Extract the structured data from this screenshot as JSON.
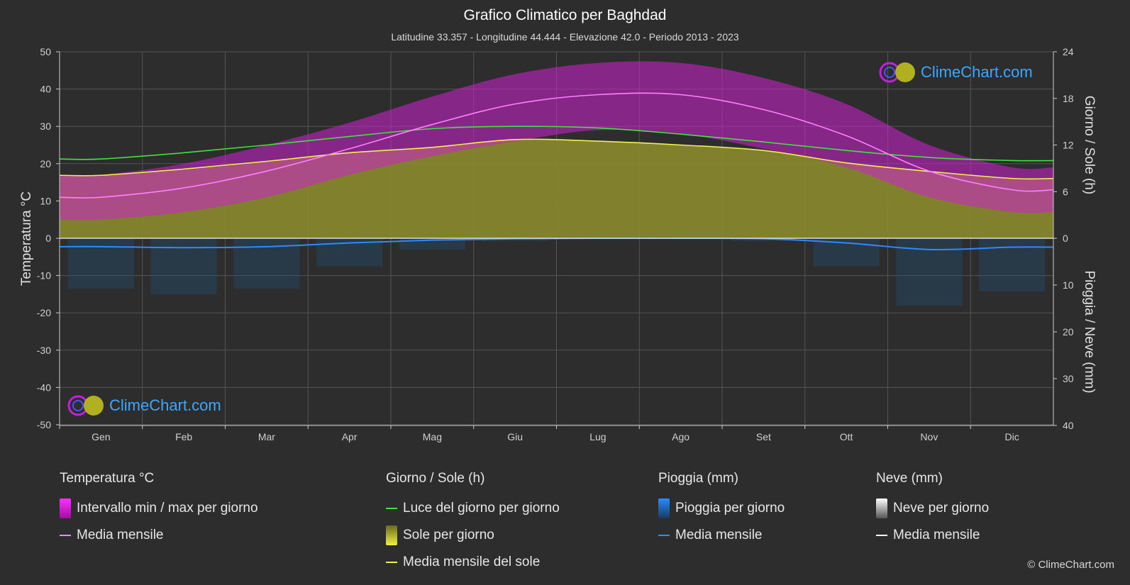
{
  "header": {
    "title": "Grafico Climatico per Baghdad",
    "subtitle": "Latitudine 33.357 - Longitudine 44.444 - Elevazione 42.0 - Periodo 2013 - 2023"
  },
  "brand": {
    "logo_text": "ClimeChart.com",
    "copyright": "© ClimeChart.com"
  },
  "legend": {
    "temperature": {
      "title": "Temperatura °C",
      "range": "Intervallo min / max per giorno",
      "mean": "Media mensile"
    },
    "sun": {
      "title": "Giorno / Sole (h)",
      "daylight": "Luce del giorno per giorno",
      "sunshine": "Sole per giorno",
      "mean": "Media mensile del sole"
    },
    "rain": {
      "title": "Pioggia (mm)",
      "daily": "Pioggia per giorno",
      "mean": "Media mensile"
    },
    "snow": {
      "title": "Neve (mm)",
      "daily": "Neve per giorno",
      "mean": "Media mensile"
    }
  },
  "colors": {
    "temp_range": "#d020d0",
    "temp_mean": "#ff80ff",
    "daylight": "#3ee33e",
    "sunshine_fill": "#8a8a2e",
    "sun_mean": "#f0f050",
    "rain": "#2a8cff",
    "rain_mean": "#2a8cff",
    "snow_mean": "#ffffff"
  },
  "chart_data": {
    "type": "area",
    "categories": [
      "Gen",
      "Feb",
      "Mar",
      "Apr",
      "Mag",
      "Giu",
      "Lug",
      "Ago",
      "Set",
      "Ott",
      "Nov",
      "Dic"
    ],
    "axes": {
      "left": {
        "label": "Temperatura °C",
        "min": -50,
        "max": 50,
        "ticks": [
          50,
          40,
          30,
          20,
          10,
          0,
          -10,
          -20,
          -30,
          -40,
          -50
        ]
      },
      "right_top": {
        "label": "Giorno / Sole (h)",
        "min": 0,
        "max": 24,
        "ticks": [
          24,
          18,
          12,
          6,
          0
        ]
      },
      "right_bottom": {
        "label": "Pioggia / Neve (mm)",
        "min": 0,
        "max": 40,
        "ticks": [
          10,
          20,
          30,
          40
        ]
      }
    },
    "grid": true,
    "series": [
      {
        "name": "Intervallo min / max per giorno",
        "kind": "temp_range",
        "min": [
          5,
          7,
          11,
          17,
          22,
          26,
          29,
          28,
          24,
          19,
          11,
          7
        ],
        "max": [
          17,
          20,
          25,
          31,
          38,
          44,
          47,
          47,
          43,
          36,
          25,
          19
        ]
      },
      {
        "name": "Media mensile",
        "kind": "temp_mean",
        "values": [
          11,
          13.5,
          18,
          24,
          30.5,
          36,
          38.5,
          38.5,
          34.5,
          27.5,
          18,
          13
        ]
      },
      {
        "name": "Luce del giorno per giorno",
        "kind": "daylight",
        "values": [
          10.2,
          11,
          12,
          13.1,
          14.1,
          14.4,
          14.2,
          13.4,
          12.4,
          11.3,
          10.4,
          10
        ]
      },
      {
        "name": "Sole per giorno",
        "kind": "sunshine",
        "values": [
          8,
          8.8,
          9.8,
          11,
          11.7,
          12.7,
          12.5,
          12,
          11.3,
          9.7,
          8.6,
          7.7
        ]
      },
      {
        "name": "Media mensile del sole",
        "kind": "sun_mean",
        "values": [
          8.1,
          8.9,
          9.9,
          11,
          11.7,
          12.7,
          12.5,
          12,
          11.3,
          9.7,
          8.6,
          7.7
        ]
      },
      {
        "name": "Media mensile",
        "kind": "rain_mean",
        "values": [
          1.8,
          2,
          1.8,
          1,
          0.4,
          0.1,
          0,
          0,
          0.1,
          1,
          2.4,
          1.9
        ]
      }
    ]
  }
}
